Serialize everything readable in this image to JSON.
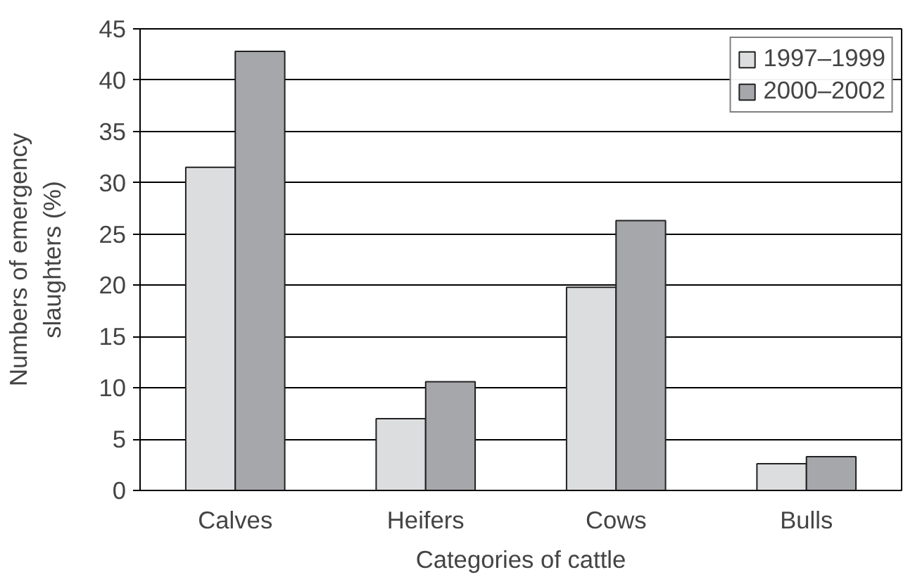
{
  "chart_data": {
    "type": "bar",
    "xlabel": "Categories of cattle",
    "ylabel": "Numbers of emergency\nslaughters (%)",
    "categories": [
      "Calves",
      "Heifers",
      "Cows",
      "Bulls"
    ],
    "series": [
      {
        "name": "1997–1999",
        "color": "#dcdddf",
        "values": [
          31.5,
          7.0,
          19.8,
          2.6
        ]
      },
      {
        "name": "2000–2002",
        "color": "#a6a7ab",
        "values": [
          42.8,
          10.6,
          26.3,
          3.3
        ]
      }
    ],
    "ylim": [
      0,
      45
    ],
    "yticks": [
      0,
      5,
      10,
      15,
      20,
      25,
      30,
      35,
      40,
      45
    ],
    "grid": "y",
    "legend": "top right"
  }
}
